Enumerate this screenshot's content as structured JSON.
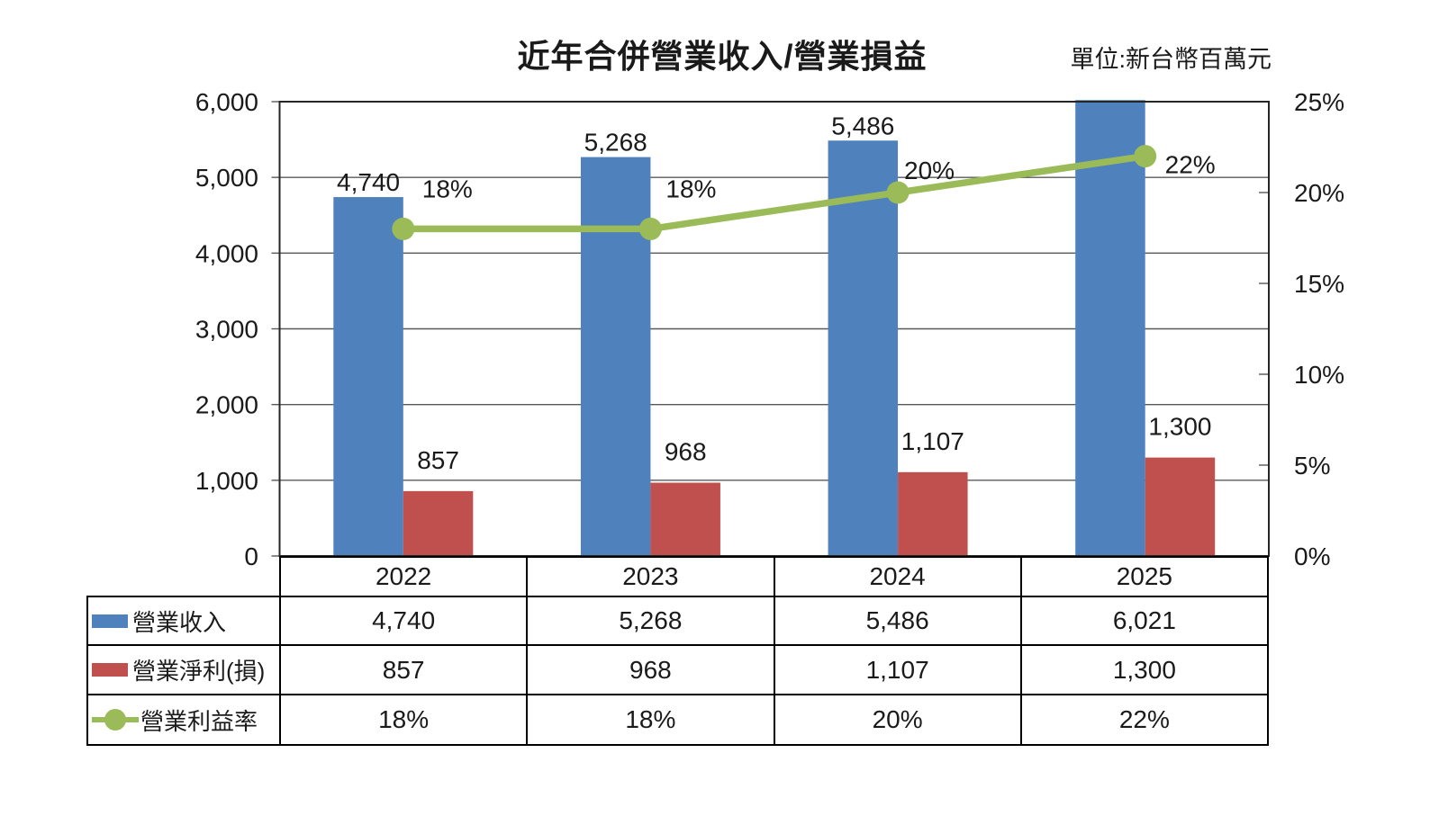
{
  "title": "近年合併營業收入/營業損益",
  "unit_label": "單位:新台幣百萬元",
  "colors": {
    "revenue_blue": "#4F81BD",
    "profit_red": "#C0504D",
    "margin_green": "#9BBB59",
    "gridline": "#595959",
    "plot_border": "#262626",
    "text": "#1a1a1a"
  },
  "chart_data": {
    "type": "bar+line combo",
    "categories": [
      "2022",
      "2023",
      "2024",
      "2025"
    ],
    "series": [
      {
        "name": "營業收入",
        "type": "bar",
        "axis": "left",
        "color_key": "revenue_blue",
        "values": [
          4740,
          5268,
          5486,
          6021
        ],
        "point_labels": [
          "4,740",
          "5,268",
          "5,486",
          ""
        ]
      },
      {
        "name": "營業淨利(損)",
        "type": "bar",
        "axis": "left",
        "color_key": "profit_red",
        "values": [
          857,
          968,
          1107,
          1300
        ],
        "point_labels": [
          "857",
          "968",
          "1,107",
          "1,300"
        ]
      },
      {
        "name": "營業利益率",
        "type": "line",
        "axis": "right",
        "color_key": "margin_green",
        "values": [
          18,
          18,
          20,
          22
        ],
        "point_labels": [
          "18%",
          "18%",
          "20%",
          "22%"
        ]
      }
    ],
    "left_axis": {
      "min": 0,
      "max": 6000,
      "step": 1000,
      "tick_labels": [
        "0",
        "1,000",
        "2,000",
        "3,000",
        "4,000",
        "5,000",
        "6,000"
      ]
    },
    "right_axis": {
      "min": 0,
      "max": 25,
      "step": 5,
      "tick_labels": [
        "0%",
        "5%",
        "10%",
        "15%",
        "20%",
        "25%"
      ]
    },
    "grid": "horizontal-major-only",
    "legend_position": "table-left"
  },
  "table": {
    "year_header": [
      "2022",
      "2023",
      "2024",
      "2025"
    ],
    "rows": [
      {
        "label": "營業收入",
        "swatch": "blue-bar",
        "cells": [
          "4,740",
          "5,268",
          "5,486",
          "6,021"
        ]
      },
      {
        "label": "營業淨利(損)",
        "swatch": "red-bar",
        "cells": [
          "857",
          "968",
          "1,107",
          "1,300"
        ]
      },
      {
        "label": "營業利益率",
        "swatch": "green-line-marker",
        "cells": [
          "18%",
          "18%",
          "20%",
          "22%"
        ]
      }
    ]
  }
}
